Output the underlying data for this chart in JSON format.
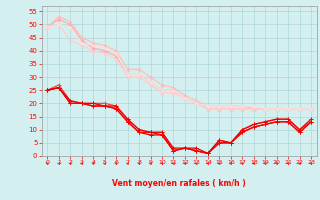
{
  "xlabel": "Vent moyen/en rafales ( km/h )",
  "xlim": [
    -0.5,
    23.5
  ],
  "ylim": [
    0,
    57
  ],
  "yticks": [
    0,
    5,
    10,
    15,
    20,
    25,
    30,
    35,
    40,
    45,
    50,
    55
  ],
  "xticks": [
    0,
    1,
    2,
    3,
    4,
    5,
    6,
    7,
    8,
    9,
    10,
    11,
    12,
    13,
    14,
    15,
    16,
    17,
    18,
    19,
    20,
    21,
    22,
    23
  ],
  "bg_color": "#d4efef",
  "grid_color": "#aed8d8",
  "series": [
    {
      "color": "#ffaaaa",
      "lw": 0.8,
      "marker": "^",
      "ms": 2.0,
      "y": [
        49,
        52,
        50,
        44,
        41,
        40,
        38,
        31,
        31,
        28,
        25,
        25,
        22,
        20,
        18,
        18,
        18,
        18,
        18,
        18,
        18,
        18,
        18,
        18
      ]
    },
    {
      "color": "#ffbbbb",
      "lw": 0.8,
      "marker": "^",
      "ms": 2.0,
      "y": [
        49,
        53,
        51,
        45,
        43,
        42,
        40,
        33,
        33,
        30,
        27,
        26,
        23,
        21,
        19,
        19,
        19,
        19,
        18,
        18,
        18,
        18,
        18,
        18
      ]
    },
    {
      "color": "#ffcccc",
      "lw": 0.8,
      "marker": "^",
      "ms": 2.0,
      "y": [
        49,
        50,
        44,
        42,
        40,
        39,
        37,
        30,
        30,
        27,
        24,
        24,
        22,
        20,
        18,
        18,
        18,
        18,
        18,
        18,
        18,
        18,
        18,
        18
      ]
    },
    {
      "color": "#ffdddd",
      "lw": 0.8,
      "marker": "^",
      "ms": 2.0,
      "y": [
        49,
        50,
        49,
        43,
        42,
        41,
        39,
        31,
        31,
        28,
        25,
        25,
        22,
        20,
        19,
        19,
        19,
        19,
        19,
        18,
        18,
        18,
        18,
        18
      ]
    },
    {
      "color": "#ff4444",
      "lw": 0.9,
      "marker": "+",
      "ms": 3.0,
      "y": [
        25,
        27,
        21,
        20,
        20,
        20,
        19,
        14,
        10,
        9,
        9,
        2,
        3,
        2,
        1,
        6,
        5,
        10,
        12,
        13,
        14,
        14,
        10,
        13
      ]
    },
    {
      "color": "#cc0000",
      "lw": 0.9,
      "marker": "+",
      "ms": 3.0,
      "y": [
        25,
        26,
        20,
        20,
        19,
        19,
        18,
        13,
        9,
        8,
        8,
        2,
        3,
        2,
        1,
        5,
        5,
        9,
        11,
        12,
        13,
        13,
        9,
        13
      ]
    },
    {
      "color": "#ff0000",
      "lw": 0.9,
      "marker": "+",
      "ms": 3.0,
      "y": [
        25,
        26,
        20,
        20,
        19,
        19,
        18,
        13,
        9,
        9,
        8,
        2,
        3,
        2,
        1,
        5,
        5,
        9,
        11,
        12,
        13,
        13,
        9,
        13
      ]
    },
    {
      "color": "#ee0000",
      "lw": 0.9,
      "marker": "+",
      "ms": 3.0,
      "y": [
        25,
        26,
        21,
        20,
        20,
        19,
        19,
        14,
        10,
        9,
        9,
        3,
        3,
        3,
        1,
        6,
        5,
        10,
        12,
        13,
        14,
        14,
        10,
        14
      ]
    }
  ]
}
